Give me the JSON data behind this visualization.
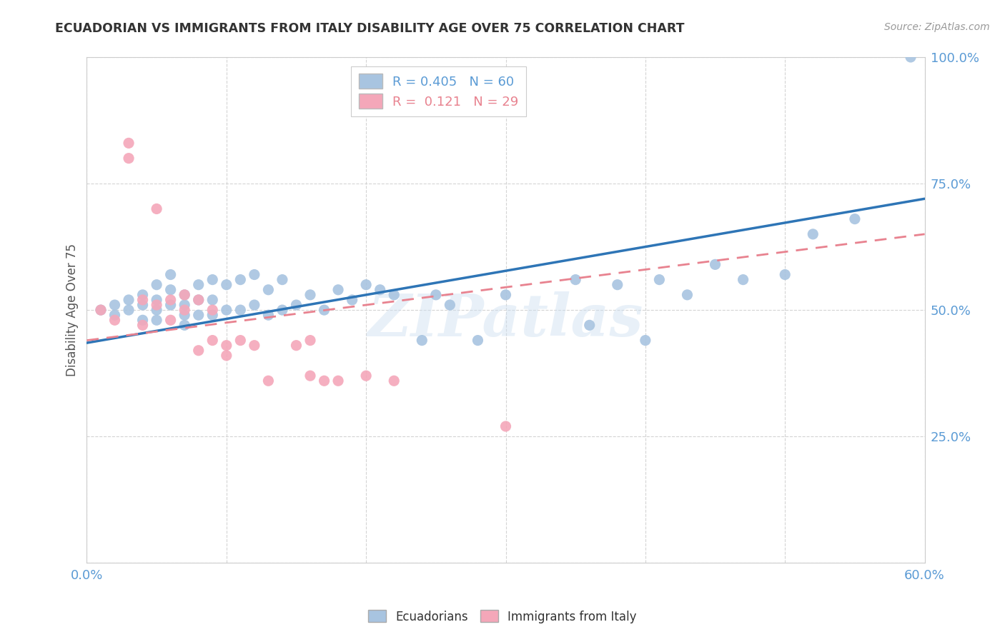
{
  "title": "ECUADORIAN VS IMMIGRANTS FROM ITALY DISABILITY AGE OVER 75 CORRELATION CHART",
  "source_text": "Source: ZipAtlas.com",
  "ylabel": "Disability Age Over 75",
  "x_min": 0.0,
  "x_max": 0.6,
  "y_min": 0.0,
  "y_max": 1.0,
  "x_ticks": [
    0.0,
    0.1,
    0.2,
    0.3,
    0.4,
    0.5,
    0.6
  ],
  "x_tick_labels": [
    "0.0%",
    "",
    "",
    "",
    "",
    "",
    "60.0%"
  ],
  "y_ticks": [
    0.0,
    0.25,
    0.5,
    0.75,
    1.0
  ],
  "y_tick_labels": [
    "",
    "25.0%",
    "50.0%",
    "75.0%",
    "100.0%"
  ],
  "blue_R": 0.405,
  "blue_N": 60,
  "pink_R": 0.121,
  "pink_N": 29,
  "blue_color": "#a8c4e0",
  "pink_color": "#f4a7b9",
  "blue_line_color": "#2E75B6",
  "pink_line_color": "#e8828f",
  "legend_blue_label": "Ecuadorians",
  "legend_pink_label": "Immigrants from Italy",
  "watermark": "ZIPatlas",
  "blue_scatter_x": [
    0.01,
    0.02,
    0.02,
    0.03,
    0.03,
    0.04,
    0.04,
    0.04,
    0.05,
    0.05,
    0.05,
    0.05,
    0.06,
    0.06,
    0.06,
    0.07,
    0.07,
    0.07,
    0.07,
    0.08,
    0.08,
    0.08,
    0.09,
    0.09,
    0.09,
    0.1,
    0.1,
    0.11,
    0.11,
    0.12,
    0.12,
    0.13,
    0.13,
    0.14,
    0.14,
    0.15,
    0.16,
    0.17,
    0.18,
    0.19,
    0.2,
    0.21,
    0.22,
    0.24,
    0.25,
    0.26,
    0.28,
    0.3,
    0.35,
    0.36,
    0.38,
    0.4,
    0.41,
    0.43,
    0.45,
    0.47,
    0.5,
    0.52,
    0.55,
    0.59
  ],
  "blue_scatter_y": [
    0.5,
    0.51,
    0.49,
    0.52,
    0.5,
    0.53,
    0.51,
    0.48,
    0.55,
    0.52,
    0.5,
    0.48,
    0.57,
    0.54,
    0.51,
    0.53,
    0.51,
    0.49,
    0.47,
    0.55,
    0.52,
    0.49,
    0.56,
    0.52,
    0.49,
    0.55,
    0.5,
    0.56,
    0.5,
    0.57,
    0.51,
    0.54,
    0.49,
    0.56,
    0.5,
    0.51,
    0.53,
    0.5,
    0.54,
    0.52,
    0.55,
    0.54,
    0.53,
    0.44,
    0.53,
    0.51,
    0.44,
    0.53,
    0.56,
    0.47,
    0.55,
    0.44,
    0.56,
    0.53,
    0.59,
    0.56,
    0.57,
    0.65,
    0.68,
    1.0
  ],
  "pink_scatter_x": [
    0.01,
    0.02,
    0.03,
    0.03,
    0.04,
    0.04,
    0.05,
    0.05,
    0.06,
    0.06,
    0.07,
    0.07,
    0.08,
    0.08,
    0.09,
    0.09,
    0.1,
    0.1,
    0.11,
    0.12,
    0.13,
    0.15,
    0.16,
    0.16,
    0.17,
    0.18,
    0.2,
    0.22,
    0.3
  ],
  "pink_scatter_y": [
    0.5,
    0.48,
    0.8,
    0.83,
    0.52,
    0.47,
    0.7,
    0.51,
    0.52,
    0.48,
    0.53,
    0.5,
    0.42,
    0.52,
    0.44,
    0.5,
    0.43,
    0.41,
    0.44,
    0.43,
    0.36,
    0.43,
    0.44,
    0.37,
    0.36,
    0.36,
    0.37,
    0.36,
    0.27
  ],
  "blue_line_x": [
    0.0,
    0.6
  ],
  "blue_line_y": [
    0.435,
    0.72
  ],
  "pink_line_x": [
    0.0,
    0.6
  ],
  "pink_line_y": [
    0.44,
    0.65
  ],
  "background_color": "#ffffff",
  "grid_color": "#d0d0d0"
}
